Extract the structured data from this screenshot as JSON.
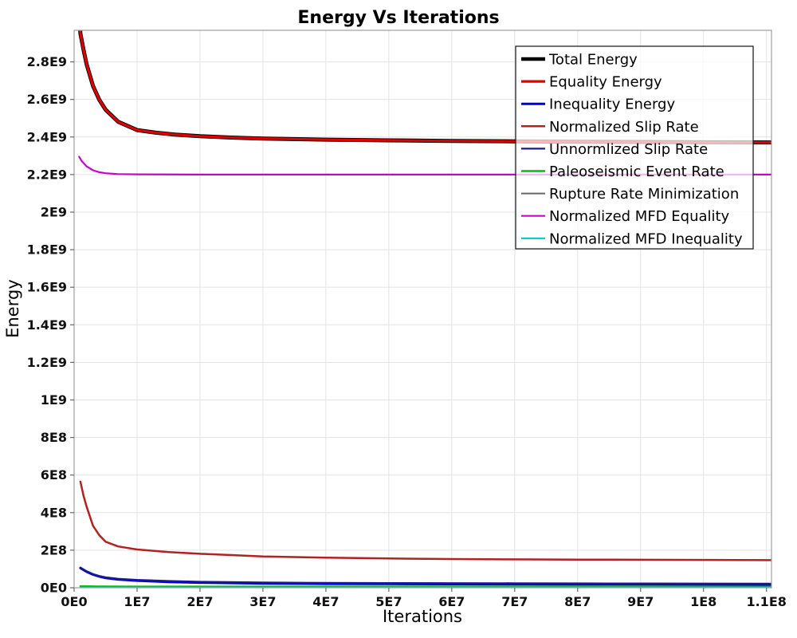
{
  "chart_data": {
    "type": "line",
    "title": "Energy Vs Iterations",
    "xlabel": "Iterations",
    "ylabel": "Energy",
    "xlim": [
      0,
      110800000
    ],
    "ylim": [
      0,
      2968000000
    ],
    "grid": true,
    "legend_position": "top-right",
    "x_ticks": [
      {
        "value": 0,
        "label": "0E0"
      },
      {
        "value": 10000000,
        "label": "1E7"
      },
      {
        "value": 20000000,
        "label": "2E7"
      },
      {
        "value": 30000000,
        "label": "3E7"
      },
      {
        "value": 40000000,
        "label": "4E7"
      },
      {
        "value": 50000000,
        "label": "5E7"
      },
      {
        "value": 60000000,
        "label": "6E7"
      },
      {
        "value": 70000000,
        "label": "7E7"
      },
      {
        "value": 80000000,
        "label": "8E7"
      },
      {
        "value": 90000000,
        "label": "9E7"
      },
      {
        "value": 100000000,
        "label": "1E8"
      },
      {
        "value": 110000000,
        "label": "1.1E8"
      }
    ],
    "y_ticks": [
      {
        "value": 0,
        "label": "0E0"
      },
      {
        "value": 200000000,
        "label": "2E8"
      },
      {
        "value": 400000000,
        "label": "4E8"
      },
      {
        "value": 600000000,
        "label": "6E8"
      },
      {
        "value": 800000000,
        "label": "8E8"
      },
      {
        "value": 1000000000,
        "label": "1E9"
      },
      {
        "value": 1200000000,
        "label": "1.2E9"
      },
      {
        "value": 1400000000,
        "label": "1.4E9"
      },
      {
        "value": 1600000000,
        "label": "1.6E9"
      },
      {
        "value": 1800000000,
        "label": "1.8E9"
      },
      {
        "value": 2000000000,
        "label": "2E9"
      },
      {
        "value": 2200000000,
        "label": "2.2E9"
      },
      {
        "value": 2400000000,
        "label": "2.4E9"
      },
      {
        "value": 2600000000,
        "label": "2.6E9"
      },
      {
        "value": 2800000000,
        "label": "2.8E9"
      }
    ],
    "colors": {
      "grid": "#E3E3E3",
      "frame": "#9E9E9E",
      "tick": "#666666",
      "legend_border": "#222222",
      "legend_background": "rgba(255,255,255,0.72)"
    },
    "series": [
      {
        "name": "Total Energy",
        "color": "#000000",
        "width": 5,
        "points": [
          [
            800000,
            3050000000
          ],
          [
            1000000,
            2950000000
          ],
          [
            1500000,
            2865000000
          ],
          [
            2000000,
            2785000000
          ],
          [
            3000000,
            2672000000
          ],
          [
            4000000,
            2598000000
          ],
          [
            5000000,
            2545000000
          ],
          [
            7000000,
            2481000000
          ],
          [
            10000000,
            2437000000
          ],
          [
            13000000,
            2423000000
          ],
          [
            16000000,
            2413000000
          ],
          [
            20000000,
            2404000000
          ],
          [
            25000000,
            2397000000
          ],
          [
            30000000,
            2392000000
          ],
          [
            40000000,
            2386000000
          ],
          [
            50000000,
            2382000000
          ],
          [
            60000000,
            2379000000
          ],
          [
            70000000,
            2377000000
          ],
          [
            80000000,
            2375000000
          ],
          [
            90000000,
            2373500000
          ],
          [
            100000000,
            2372000000
          ],
          [
            110800000,
            2371000000
          ]
        ]
      },
      {
        "name": "Equality Energy",
        "color": "#DF0000",
        "width": 3.2,
        "points": [
          [
            800000,
            3050000000
          ],
          [
            1000000,
            2950000000
          ],
          [
            1500000,
            2865000000
          ],
          [
            2000000,
            2785000000
          ],
          [
            3000000,
            2672000000
          ],
          [
            4000000,
            2598000000
          ],
          [
            5000000,
            2545000000
          ],
          [
            7000000,
            2481000000
          ],
          [
            10000000,
            2437000000
          ],
          [
            13000000,
            2423000000
          ],
          [
            16000000,
            2413000000
          ],
          [
            20000000,
            2404000000
          ],
          [
            25000000,
            2397000000
          ],
          [
            30000000,
            2392000000
          ],
          [
            40000000,
            2386000000
          ],
          [
            50000000,
            2382000000
          ],
          [
            60000000,
            2379000000
          ],
          [
            70000000,
            2377000000
          ],
          [
            80000000,
            2375000000
          ],
          [
            90000000,
            2373500000
          ],
          [
            100000000,
            2372000000
          ],
          [
            110800000,
            2371000000
          ]
        ]
      },
      {
        "name": "Inequality Energy",
        "color": "#0000DF",
        "width": 3,
        "points": [
          [
            1000000,
            105000000
          ],
          [
            2000000,
            85000000
          ],
          [
            3000000,
            70000000
          ],
          [
            4000000,
            60000000
          ],
          [
            5000000,
            52000000
          ],
          [
            7000000,
            44000000
          ],
          [
            10000000,
            38000000
          ],
          [
            15000000,
            31000000
          ],
          [
            20000000,
            27000000
          ],
          [
            30000000,
            23000000
          ],
          [
            40000000,
            21000000
          ],
          [
            50000000,
            20000000
          ],
          [
            60000000,
            19000000
          ],
          [
            70000000,
            18500000
          ],
          [
            80000000,
            18000000
          ],
          [
            90000000,
            17800000
          ],
          [
            100000000,
            17500000
          ],
          [
            110800000,
            17000000
          ]
        ]
      },
      {
        "name": "Normalized Slip Rate",
        "color": "#B22222",
        "width": 2.5,
        "points": [
          [
            1000000,
            565000000
          ],
          [
            1500000,
            490000000
          ],
          [
            2000000,
            430000000
          ],
          [
            3000000,
            330000000
          ],
          [
            4000000,
            280000000
          ],
          [
            5000000,
            245000000
          ],
          [
            7000000,
            220000000
          ],
          [
            10000000,
            204000000
          ],
          [
            15000000,
            190000000
          ],
          [
            20000000,
            181000000
          ],
          [
            25000000,
            174000000
          ],
          [
            30000000,
            167000000
          ],
          [
            40000000,
            160000000
          ],
          [
            50000000,
            156000000
          ],
          [
            60000000,
            153000000
          ],
          [
            70000000,
            151000000
          ],
          [
            80000000,
            150000000
          ],
          [
            90000000,
            149000000
          ],
          [
            100000000,
            148000000
          ],
          [
            110800000,
            147000000
          ]
        ]
      },
      {
        "name": "Unnormlized Slip Rate",
        "color": "#1A1A8C",
        "width": 2.2,
        "points": [
          [
            1000000,
            108000000
          ],
          [
            2000000,
            88000000
          ],
          [
            3000000,
            73000000
          ],
          [
            4000000,
            63000000
          ],
          [
            5000000,
            56000000
          ],
          [
            7000000,
            48000000
          ],
          [
            10000000,
            42000000
          ],
          [
            15000000,
            36000000
          ],
          [
            20000000,
            32000000
          ],
          [
            30000000,
            28000000
          ],
          [
            40000000,
            26000000
          ],
          [
            50000000,
            25000000
          ],
          [
            60000000,
            24500000
          ],
          [
            70000000,
            24000000
          ],
          [
            80000000,
            23500000
          ],
          [
            90000000,
            23000000
          ],
          [
            100000000,
            22500000
          ],
          [
            110800000,
            22000000
          ]
        ]
      },
      {
        "name": "Paleoseismic Event Rate",
        "color": "#00BE00",
        "width": 2.5,
        "points": [
          [
            1000000,
            8000000
          ],
          [
            5000000,
            6500000
          ],
          [
            10000000,
            6000000
          ],
          [
            110800000,
            5500000
          ]
        ]
      },
      {
        "name": "Rupture Rate Minimization",
        "color": "#666666",
        "width": 2,
        "points": [
          [
            1000000,
            2500000
          ],
          [
            110800000,
            2000000
          ]
        ]
      },
      {
        "name": "Normalized MFD Equality",
        "color": "#CC00CC",
        "width": 2.2,
        "points": [
          [
            800000,
            2295000000
          ],
          [
            1200000,
            2272000000
          ],
          [
            2000000,
            2243000000
          ],
          [
            3000000,
            2223000000
          ],
          [
            4000000,
            2212000000
          ],
          [
            5000000,
            2207000000
          ],
          [
            7000000,
            2202500000
          ],
          [
            10000000,
            2201000000
          ],
          [
            20000000,
            2200000000
          ],
          [
            110800000,
            2200000000
          ]
        ]
      },
      {
        "name": "Normalized MFD Inequality",
        "color": "#00C8C8",
        "width": 2.2,
        "points": [
          [
            1000000,
            1200000
          ],
          [
            110800000,
            1000000
          ]
        ]
      }
    ]
  }
}
